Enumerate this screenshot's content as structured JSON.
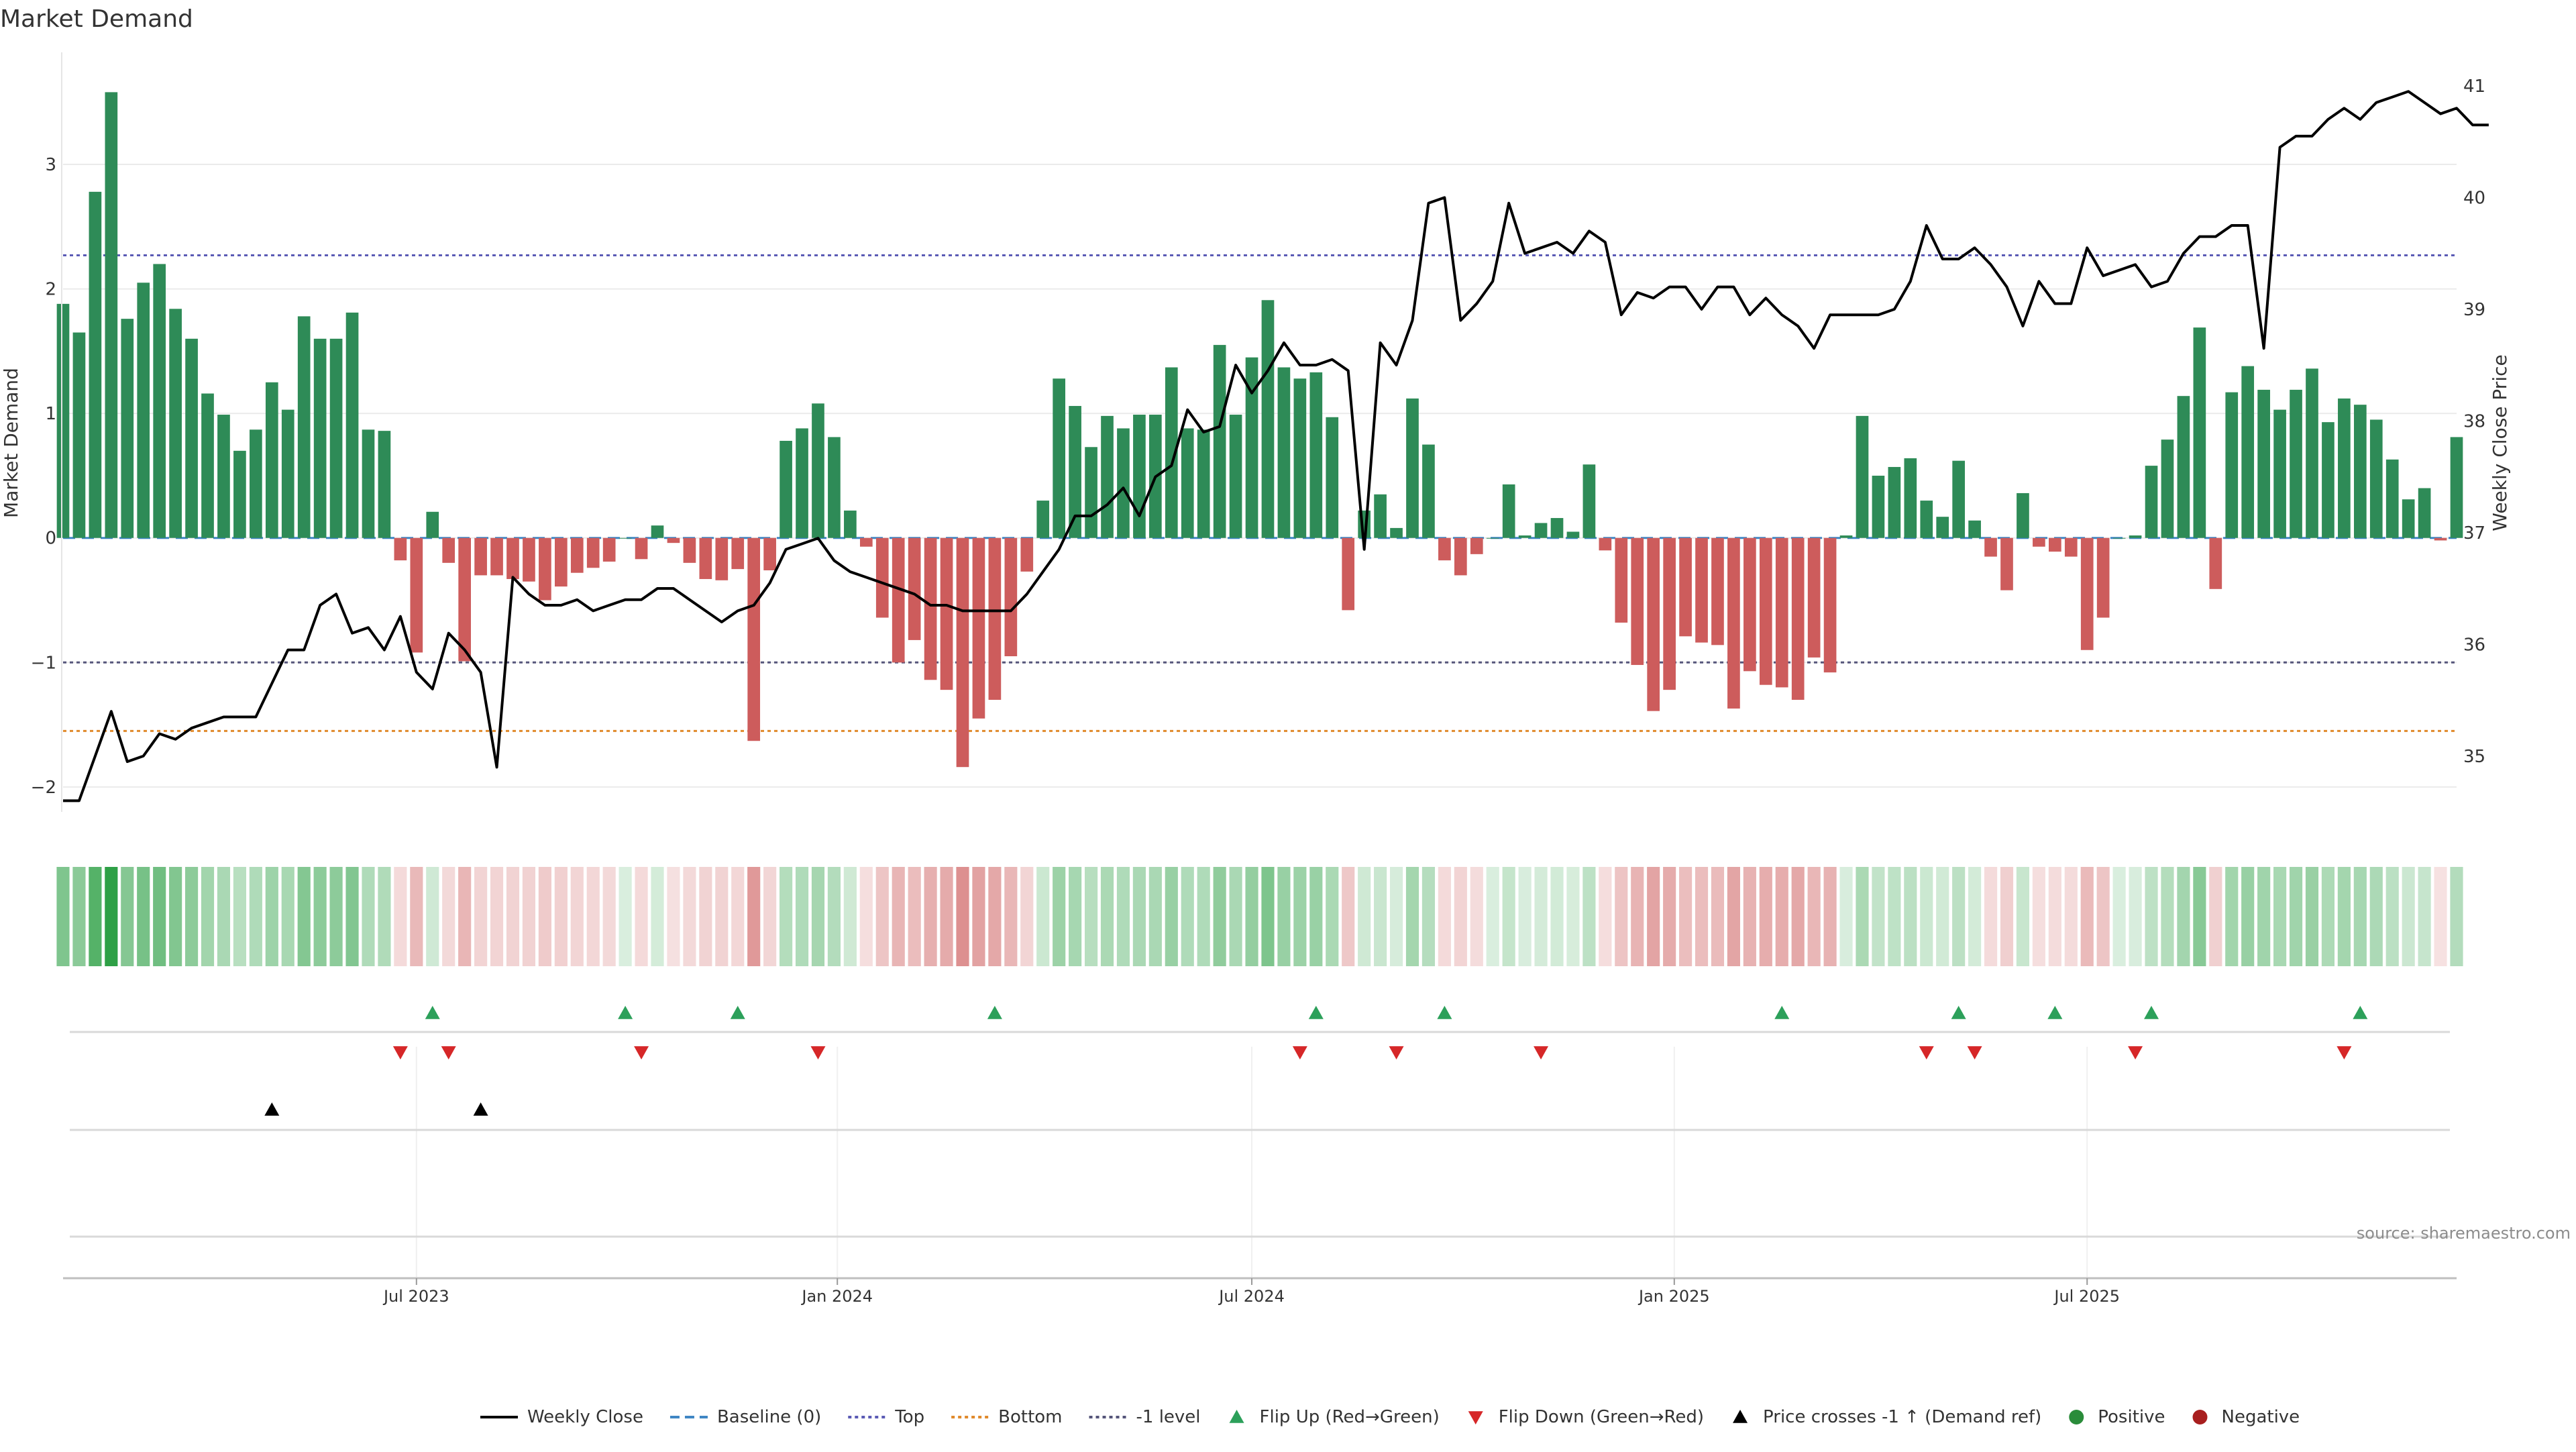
{
  "chart_data": {
    "type": "bar",
    "title": "Market Demand",
    "ylabel": "Market Demand",
    "y2label": "Weekly Close Price",
    "ylim": [
      -2.2,
      3.9
    ],
    "y2lim": [
      34.5,
      41.3
    ],
    "y_ticks": [
      -2,
      -1,
      0,
      1,
      2,
      3
    ],
    "y_tick_labels": [
      "−2",
      "−1",
      "0",
      "1",
      "2",
      "3"
    ],
    "y2_ticks": [
      35,
      36,
      37,
      38,
      39,
      40,
      41
    ],
    "y2_tick_labels": [
      "35",
      "36",
      "37",
      "38",
      "39",
      "40",
      "41"
    ],
    "x_ticks": [
      {
        "index": 22,
        "label": "Jul 2023"
      },
      {
        "index": 48.2,
        "label": "Jan 2024"
      },
      {
        "index": 74,
        "label": "Jul 2024"
      },
      {
        "index": 100.3,
        "label": "Jan 2025"
      },
      {
        "index": 126,
        "label": "Jul 2025"
      }
    ],
    "reference_lines": [
      {
        "name": "Top",
        "value": 2.27,
        "color": "#5b5bb5",
        "style": "dotted"
      },
      {
        "name": "-1 level",
        "value": -1.0,
        "color": "#55557a",
        "style": "dotted"
      },
      {
        "name": "Bottom",
        "value": -1.55,
        "color": "#e08a2c",
        "style": "dotted"
      },
      {
        "name": "Baseline (0)",
        "value": 0,
        "color": "#3f86c4",
        "style": "dashed"
      }
    ],
    "demand": [
      1.88,
      1.65,
      2.78,
      3.58,
      1.76,
      2.05,
      2.2,
      1.84,
      1.6,
      1.16,
      0.99,
      0.7,
      0.87,
      1.25,
      1.03,
      1.78,
      1.6,
      1.6,
      1.81,
      0.87,
      0.86,
      -0.18,
      -0.92,
      0.21,
      -0.2,
      -0.99,
      -0.3,
      -0.3,
      -0.33,
      -0.35,
      -0.5,
      -0.39,
      -0.28,
      -0.24,
      -0.19,
      0,
      -0.17,
      0.1,
      -0.04,
      -0.2,
      -0.33,
      -0.34,
      -0.25,
      -1.63,
      -0.26,
      0.78,
      0.88,
      1.08,
      0.81,
      0.22,
      -0.07,
      -0.64,
      -1.0,
      -0.82,
      -1.14,
      -1.22,
      -1.84,
      -1.45,
      -1.3,
      -0.95,
      -0.27,
      0.3,
      1.28,
      1.06,
      0.73,
      0.98,
      0.88,
      0.99,
      0.99,
      1.37,
      0.88,
      0.87,
      1.55,
      0.99,
      1.45,
      1.91,
      1.37,
      1.28,
      1.33,
      0.97,
      -0.58,
      0.22,
      0.35,
      0.08,
      1.12,
      0.75,
      -0.18,
      -0.3,
      -0.13,
      0,
      0.43,
      0.02,
      0.12,
      0.16,
      0.05,
      0.59,
      -0.1,
      -0.68,
      -1.02,
      -1.39,
      -1.22,
      -0.79,
      -0.84,
      -0.86,
      -1.37,
      -1.07,
      -1.18,
      -1.2,
      -1.3,
      -0.96,
      -1.08,
      0.02,
      0.98,
      0.5,
      0.57,
      0.64,
      0.3,
      0.17,
      0.62,
      0.14,
      -0.15,
      -0.42,
      0.36,
      -0.07,
      -0.11,
      -0.15,
      -0.9,
      -0.64,
      0,
      0.02,
      0.58,
      0.79,
      1.14,
      1.69,
      -0.41,
      1.17,
      1.38,
      1.19,
      1.03,
      1.19,
      1.36,
      0.93,
      1.12,
      1.07,
      0.95,
      0.63,
      0.31,
      0.4,
      -0.02,
      0.81
    ],
    "weekly_close": [
      34.6,
      34.6,
      35.0,
      35.4,
      34.95,
      35.0,
      35.2,
      35.15,
      35.25,
      35.3,
      35.35,
      35.35,
      35.35,
      35.65,
      35.95,
      35.95,
      36.35,
      36.45,
      36.1,
      36.15,
      35.95,
      36.25,
      35.75,
      35.6,
      36.1,
      35.95,
      35.75,
      34.9,
      36.6,
      36.45,
      36.35,
      36.35,
      36.4,
      36.3,
      36.35,
      36.4,
      36.4,
      36.5,
      36.5,
      36.4,
      36.3,
      36.2,
      36.3,
      36.35,
      36.55,
      36.85,
      36.9,
      36.95,
      36.75,
      36.65,
      36.6,
      36.55,
      36.5,
      36.45,
      36.35,
      36.35,
      36.3,
      36.3,
      36.3,
      36.3,
      36.45,
      36.65,
      36.85,
      37.15,
      37.15,
      37.25,
      37.4,
      37.15,
      37.5,
      37.6,
      38.1,
      37.9,
      37.95,
      38.5,
      38.25,
      38.45,
      38.7,
      38.5,
      38.5,
      38.55,
      38.45,
      36.85,
      38.7,
      38.5,
      38.9,
      39.95,
      40.0,
      38.9,
      39.05,
      39.25,
      39.95,
      39.5,
      39.55,
      39.6,
      39.5,
      39.7,
      39.6,
      38.95,
      39.15,
      39.1,
      39.2,
      39.2,
      39.0,
      39.2,
      39.2,
      38.95,
      39.1,
      38.95,
      38.85,
      38.65,
      38.95,
      38.95,
      38.95,
      38.95,
      39.0,
      39.25,
      39.75,
      39.45,
      39.45,
      39.55,
      39.4,
      39.2,
      38.85,
      39.25,
      39.05,
      39.05,
      39.55,
      39.3,
      39.35,
      39.4,
      39.2,
      39.25,
      39.5,
      39.65,
      39.65,
      39.75,
      39.75,
      38.65,
      40.45,
      40.55,
      40.55,
      40.7,
      40.8,
      40.7,
      40.85,
      40.9,
      40.95,
      40.85,
      40.75,
      40.8,
      40.65,
      40.65
    ],
    "flip_up_index": [
      23,
      35,
      42,
      58,
      78,
      86,
      107,
      118,
      124,
      130,
      143
    ],
    "flip_down_index": [
      21,
      24,
      36,
      47,
      77,
      83,
      92,
      116,
      119,
      129,
      142
    ],
    "price_cross_index": [
      13,
      26
    ],
    "source_label": "source: sharemaestro.com",
    "legend": [
      {
        "label": "Weekly Close",
        "kind": "line",
        "color": "#000000"
      },
      {
        "label": "Baseline (0)",
        "kind": "dashed",
        "color": "#3f86c4"
      },
      {
        "label": "Top",
        "kind": "dotted",
        "color": "#5b5bb5"
      },
      {
        "label": "Bottom",
        "kind": "dotted",
        "color": "#e08a2c"
      },
      {
        "label": "-1 level",
        "kind": "dotted",
        "color": "#55557a"
      },
      {
        "label": "Flip Up (Red→Green)",
        "kind": "tri-up",
        "color": "#2ca05a"
      },
      {
        "label": "Flip Down (Green→Red)",
        "kind": "tri-down",
        "color": "#d62728"
      },
      {
        "label": "Price crosses -1 ↑ (Demand ref)",
        "kind": "tri-up",
        "color": "#000000"
      },
      {
        "label": "Positive",
        "kind": "dot",
        "color": "#2a8c3a"
      },
      {
        "label": "Negative",
        "kind": "dot",
        "color": "#a81f1f"
      }
    ],
    "colors": {
      "positive_bar": "#2e8b57",
      "negative_bar": "#cd5c5c",
      "grid": "#ebebeb",
      "axis": "#bfbfbf"
    }
  }
}
